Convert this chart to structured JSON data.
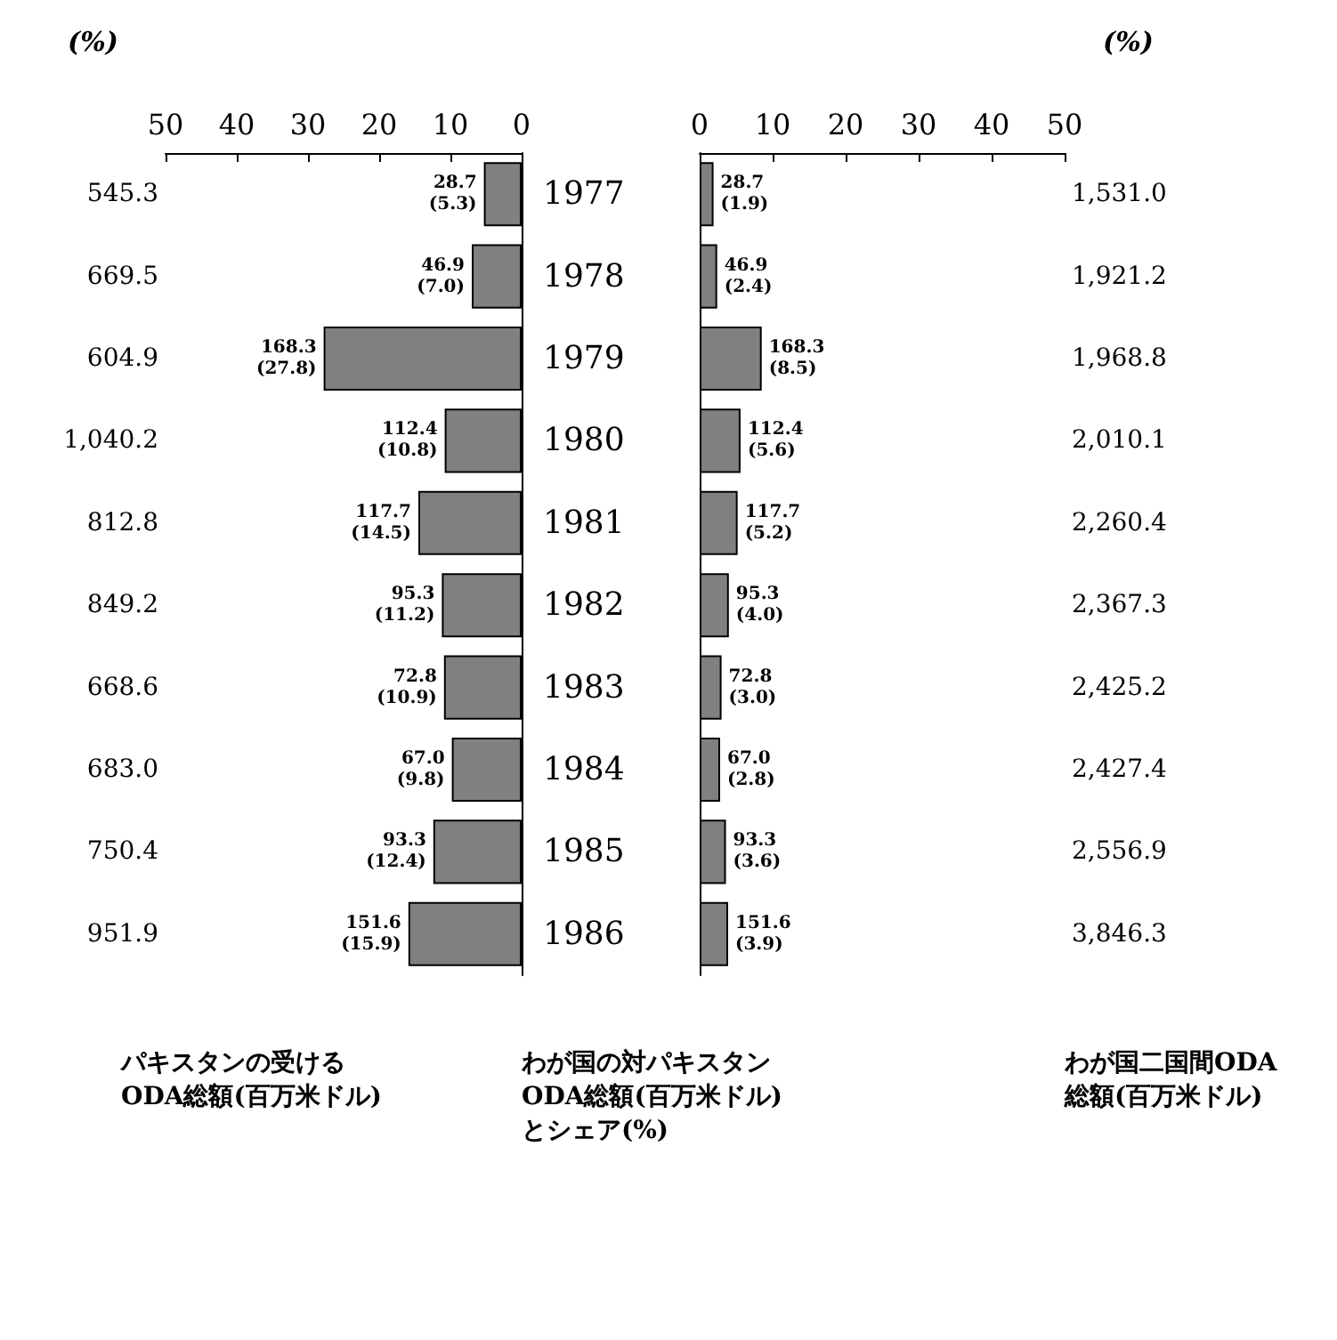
{
  "chart_data": [
    {
      "type": "bar",
      "orientation": "horizontal",
      "xlabel": "(%)",
      "categories": [
        "1977",
        "1978",
        "1979",
        "1980",
        "1981",
        "1982",
        "1983",
        "1984",
        "1985",
        "1986"
      ],
      "values": [
        5.3,
        7.0,
        27.8,
        10.8,
        14.5,
        11.2,
        10.9,
        9.8,
        12.4,
        15.9
      ],
      "color": "#808080",
      "value_labels": [
        "28.7\n(5.3)",
        "46.9\n(7.0)",
        "168.3\n(27.8)",
        "112.4\n(10.8)",
        "117.7\n(14.5)",
        "95.3\n(11.2)",
        "72.8\n(10.9)",
        "67.0\n(9.8)",
        "93.3\n(12.4)",
        "151.6\n(15.9)"
      ],
      "xlim": [
        50,
        0
      ],
      "xticks": [
        50,
        40,
        30,
        20,
        10,
        0
      ],
      "annotations": [
        "545.3",
        "669.5",
        "604.9",
        "1,040.2",
        "812.8",
        "849.2",
        "668.6",
        "683.0",
        "750.4",
        "951.9",
        "パキスタンの受けるODA総額(百万米ドル)",
        "わが国の対パキスタンODA総額(百万米ドル)とシェア(%)"
      ]
    },
    {
      "type": "bar",
      "orientation": "horizontal",
      "xlabel": "(%)",
      "tick_labels": "x",
      "categories": [
        "1977",
        "1978",
        "1979",
        "1980",
        "1981",
        "1982",
        "1983",
        "1984",
        "1985",
        "1986"
      ],
      "values": [
        1.9,
        2.4,
        8.5,
        5.6,
        5.2,
        4.0,
        3.0,
        2.8,
        3.6,
        3.9
      ],
      "color": "#808080",
      "value_labels": [
        "28.7\n(1.9)",
        "46.9\n(2.4)",
        "168.3\n(8.5)",
        "112.4\n(5.6)",
        "117.7\n(5.2)",
        "95.3\n(4.0)",
        "72.8\n(3.0)",
        "67.0\n(2.8)",
        "93.3\n(3.6)",
        "151.6\n(3.9)"
      ],
      "xlim": [
        0,
        50
      ],
      "xticks": [
        0,
        10,
        20,
        30,
        40,
        50
      ],
      "annotations": [
        "1,531.0",
        "1,921.2",
        "1,968.8",
        "2,010.1",
        "2,260.4",
        "2,367.3",
        "2,425.2",
        "2,427.4",
        "2,556.9",
        "3,846.3",
        "わが国二国間ODA総額(百万米ドル)"
      ]
    }
  ]
}
